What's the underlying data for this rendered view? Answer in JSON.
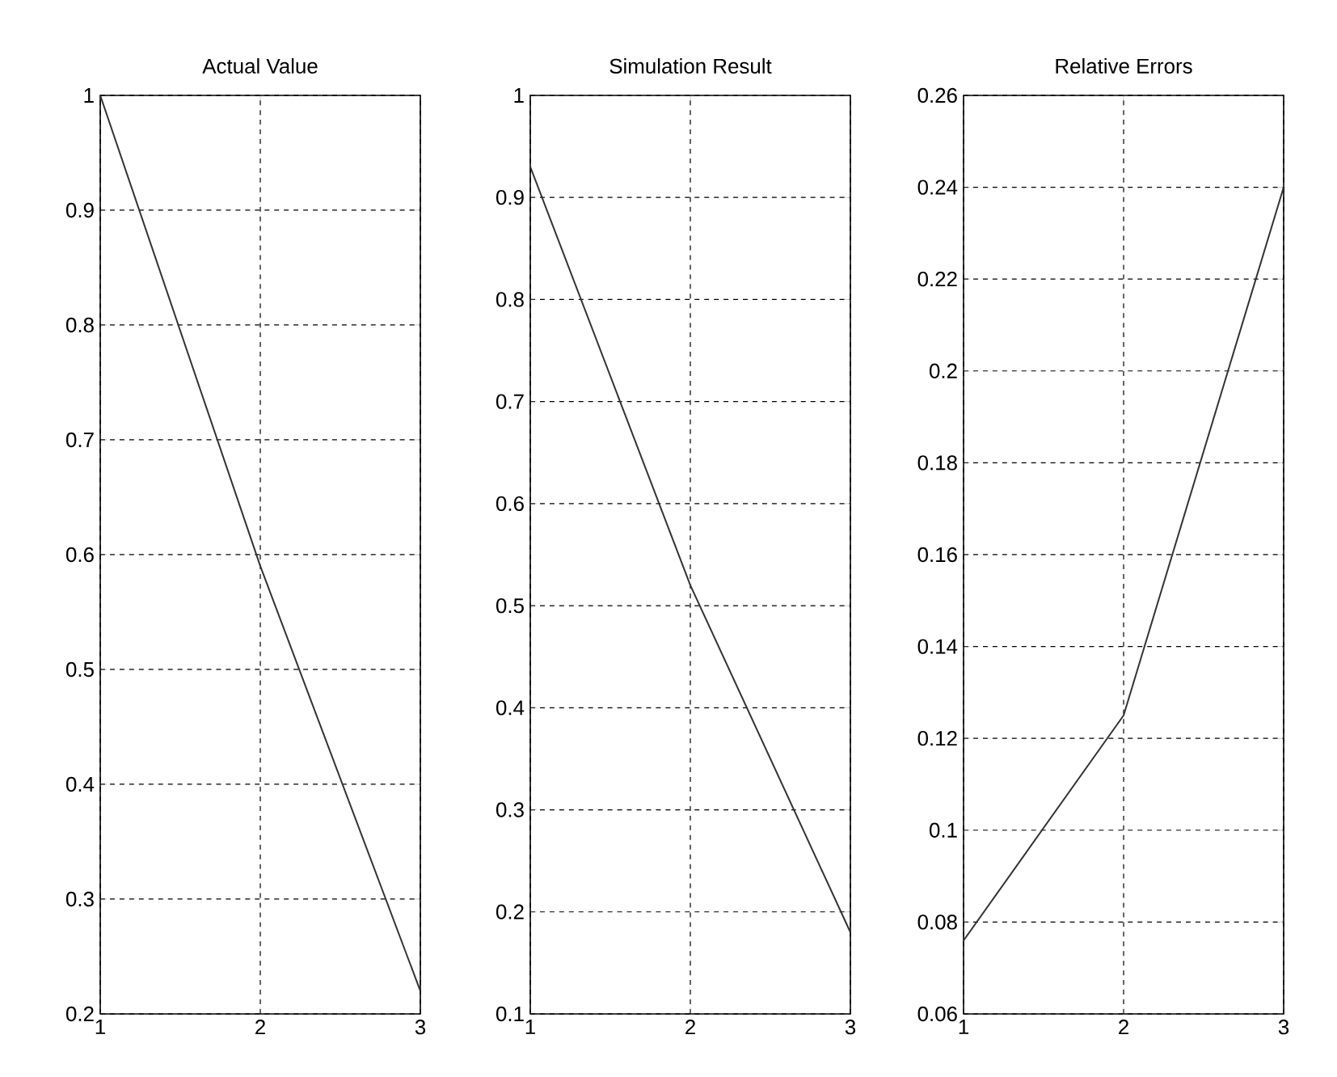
{
  "chart_data": [
    {
      "type": "line",
      "title": "Actual Value",
      "x": [
        1,
        2,
        3
      ],
      "values": [
        1.0,
        0.59,
        0.22
      ],
      "color": "#333333",
      "xlim": [
        1,
        3
      ],
      "xticks": [
        1,
        2,
        3
      ],
      "ylim": [
        0.2,
        1
      ],
      "yticks": [
        0.2,
        0.3,
        0.4,
        0.5,
        0.6,
        0.7,
        0.8,
        0.9,
        1
      ],
      "grid": true
    },
    {
      "type": "line",
      "title": "Simulation Result",
      "x": [
        1,
        2,
        3
      ],
      "values": [
        0.93,
        0.52,
        0.18
      ],
      "color": "#333333",
      "xlim": [
        1,
        3
      ],
      "xticks": [
        1,
        2,
        3
      ],
      "ylim": [
        0.1,
        1
      ],
      "yticks": [
        0.1,
        0.2,
        0.3,
        0.4,
        0.5,
        0.6,
        0.7,
        0.8,
        0.9,
        1
      ],
      "grid": true
    },
    {
      "type": "line",
      "title": "Relative Errors",
      "x": [
        1,
        2,
        3
      ],
      "values": [
        0.076,
        0.125,
        0.24
      ],
      "color": "#333333",
      "xlim": [
        1,
        3
      ],
      "xticks": [
        1,
        2,
        3
      ],
      "ylim": [
        0.06,
        0.26
      ],
      "yticks": [
        0.06,
        0.08,
        0.1,
        0.12,
        0.14,
        0.16,
        0.18,
        0.2,
        0.22,
        0.24,
        0.26
      ],
      "grid": true
    }
  ]
}
